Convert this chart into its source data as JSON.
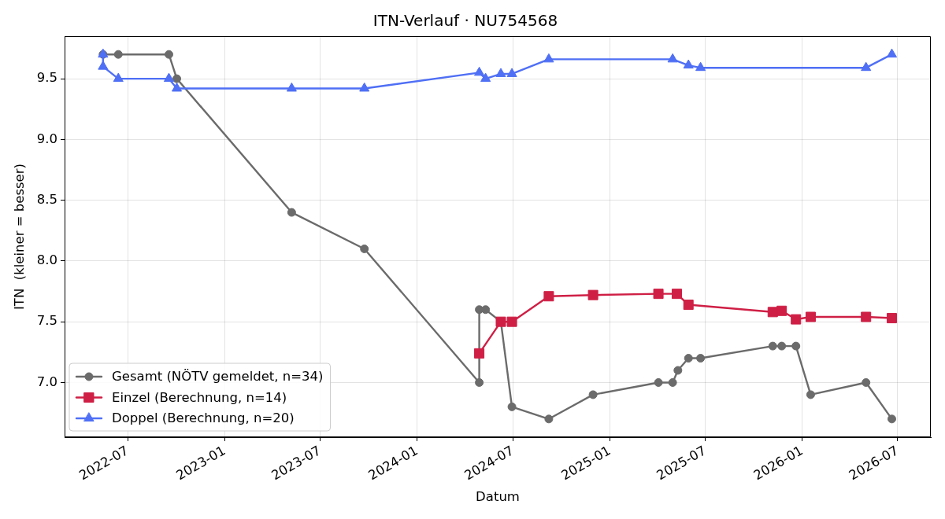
{
  "chart_data": {
    "type": "line",
    "title": "ITN-Verlauf · NU754568",
    "xlabel": "Datum",
    "ylabel": "ITN  (kleiner = besser)",
    "xlim": [
      "2022-03-03",
      "2026-09-02"
    ],
    "xticks": [
      "2022-07",
      "2023-01",
      "2023-07",
      "2024-01",
      "2024-07",
      "2025-01",
      "2025-07",
      "2026-01",
      "2026-07"
    ],
    "ylim": [
      6.55,
      9.85
    ],
    "yticks": [
      {
        "value": 7,
        "label": "7.0"
      },
      7.5,
      {
        "value": 8,
        "label": "8.0"
      },
      8.5,
      {
        "value": 9,
        "label": "9.0"
      },
      9.5
    ],
    "grid": true,
    "legend": "bottom left",
    "series": [
      {
        "name": "Gesamt (NÖTV gemeldet, n=34)",
        "color": "#6b6b6b",
        "marker": "circle",
        "x": [
          "2022-05-15",
          "2022-06-13",
          "2022-09-17",
          "2022-10-02",
          "2023-05-08",
          "2023-09-23",
          "2024-04-28",
          "2024-04-28",
          "2024-05-10",
          "2024-06-08",
          "2024-06-29",
          "2024-09-07",
          "2024-11-30",
          "2025-04-03",
          "2025-04-30",
          "2025-05-10",
          "2025-05-30",
          "2025-06-22",
          "2025-11-06",
          "2025-11-23",
          "2025-12-20",
          "2026-01-17",
          "2026-05-02",
          "2026-06-20"
        ],
        "values": [
          9.7,
          9.7,
          9.7,
          9.5,
          8.4,
          8.1,
          7.0,
          7.6,
          7.6,
          7.5,
          6.8,
          6.7,
          6.9,
          7.0,
          7.0,
          7.1,
          7.2,
          7.2,
          7.3,
          7.3,
          7.3,
          6.9,
          7.0,
          6.7
        ]
      },
      {
        "name": "Einzel (Berechnung, n=14)",
        "color": "#cf1f45",
        "marker": "square",
        "x": [
          "2024-04-28",
          "2024-06-08",
          "2024-06-29",
          "2024-09-07",
          "2024-11-30",
          "2025-04-03",
          "2025-05-08",
          "2025-05-30",
          "2025-11-06",
          "2025-11-23",
          "2025-12-20",
          "2026-01-17",
          "2026-05-02",
          "2026-06-20"
        ],
        "values": [
          7.24,
          7.5,
          7.5,
          7.71,
          7.72,
          7.73,
          7.73,
          7.64,
          7.58,
          7.59,
          7.52,
          7.54,
          7.54,
          7.53
        ]
      },
      {
        "name": "Doppel (Berechnung, n=20)",
        "color": "#4f6ff5",
        "marker": "triangle",
        "x": [
          "2022-05-15",
          "2022-05-15",
          "2022-06-13",
          "2022-09-17",
          "2022-10-02",
          "2023-05-08",
          "2023-09-23",
          "2024-04-28",
          "2024-05-10",
          "2024-06-08",
          "2024-06-29",
          "2024-09-07",
          "2025-04-30",
          "2025-05-30",
          "2025-06-22",
          "2026-05-02",
          "2026-06-20"
        ],
        "values": [
          9.7,
          9.6,
          9.5,
          9.5,
          9.42,
          9.42,
          9.42,
          9.55,
          9.5,
          9.54,
          9.54,
          9.66,
          9.66,
          9.61,
          9.59,
          9.59,
          9.7
        ]
      }
    ]
  }
}
